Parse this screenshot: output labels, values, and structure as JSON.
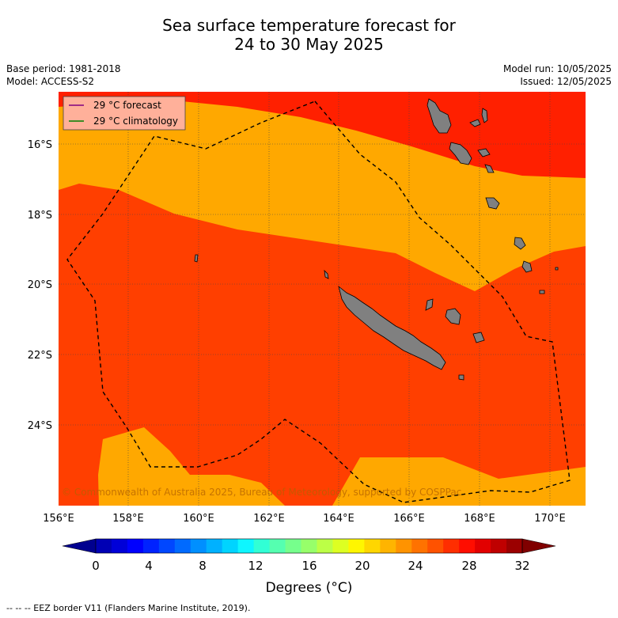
{
  "title_line1": "Sea surface temperature forecast for",
  "title_line2": "24 to 30 May 2025",
  "base_period": "Base period: 1981-2018",
  "model": "Model: ACCESS-S2",
  "model_run": "Model run: 10/05/2025",
  "issued": "Issued: 12/05/2025",
  "legend": {
    "forecast_label": "29 °C  forecast",
    "climatology_label": "29 °C  climatology",
    "forecast_color": "#800080",
    "climatology_color": "#008000"
  },
  "copyright": "© Commonwealth of Australia 2025, Bureau of Meteorology, supported by COSPPac",
  "lat_labels": [
    "16°S",
    "18°S",
    "20°S",
    "22°S",
    "24°S"
  ],
  "lon_labels": [
    "156°E",
    "158°E",
    "160°E",
    "162°E",
    "164°E",
    "166°E",
    "168°E",
    "170°E"
  ],
  "colorbar": {
    "tick_labels": [
      "0",
      "4",
      "8",
      "12",
      "16",
      "20",
      "24",
      "28",
      "32"
    ],
    "colors": [
      "#00008f",
      "#0000b4",
      "#0000d8",
      "#0000fe",
      "#0022ff",
      "#0047ff",
      "#006aff",
      "#008fff",
      "#00b1ff",
      "#00d4ff",
      "#0ef6ff",
      "#31ffd5",
      "#55ffb0",
      "#76ff8c",
      "#97ff6a",
      "#bcff46",
      "#ddff22",
      "#fff600",
      "#ffd600",
      "#ffb400",
      "#ff9300",
      "#ff7200",
      "#ff5200",
      "#ff2e00",
      "#ff0d00",
      "#e20000",
      "#bf0000",
      "#9b0000",
      "#800000"
    ],
    "label": "Degrees (",
    "label_unit": "°C)"
  },
  "footnote": "--  --  -- EEZ border V11 (Flanders Marine Institute, 2019).",
  "colors": {
    "band_26": "#ffa800",
    "band_27": "#ff9200",
    "band_28": "#ff7800",
    "band_29": "#ff5b00",
    "band_30": "#ff3f00",
    "band_31": "#ff2000",
    "land": "#808080"
  }
}
